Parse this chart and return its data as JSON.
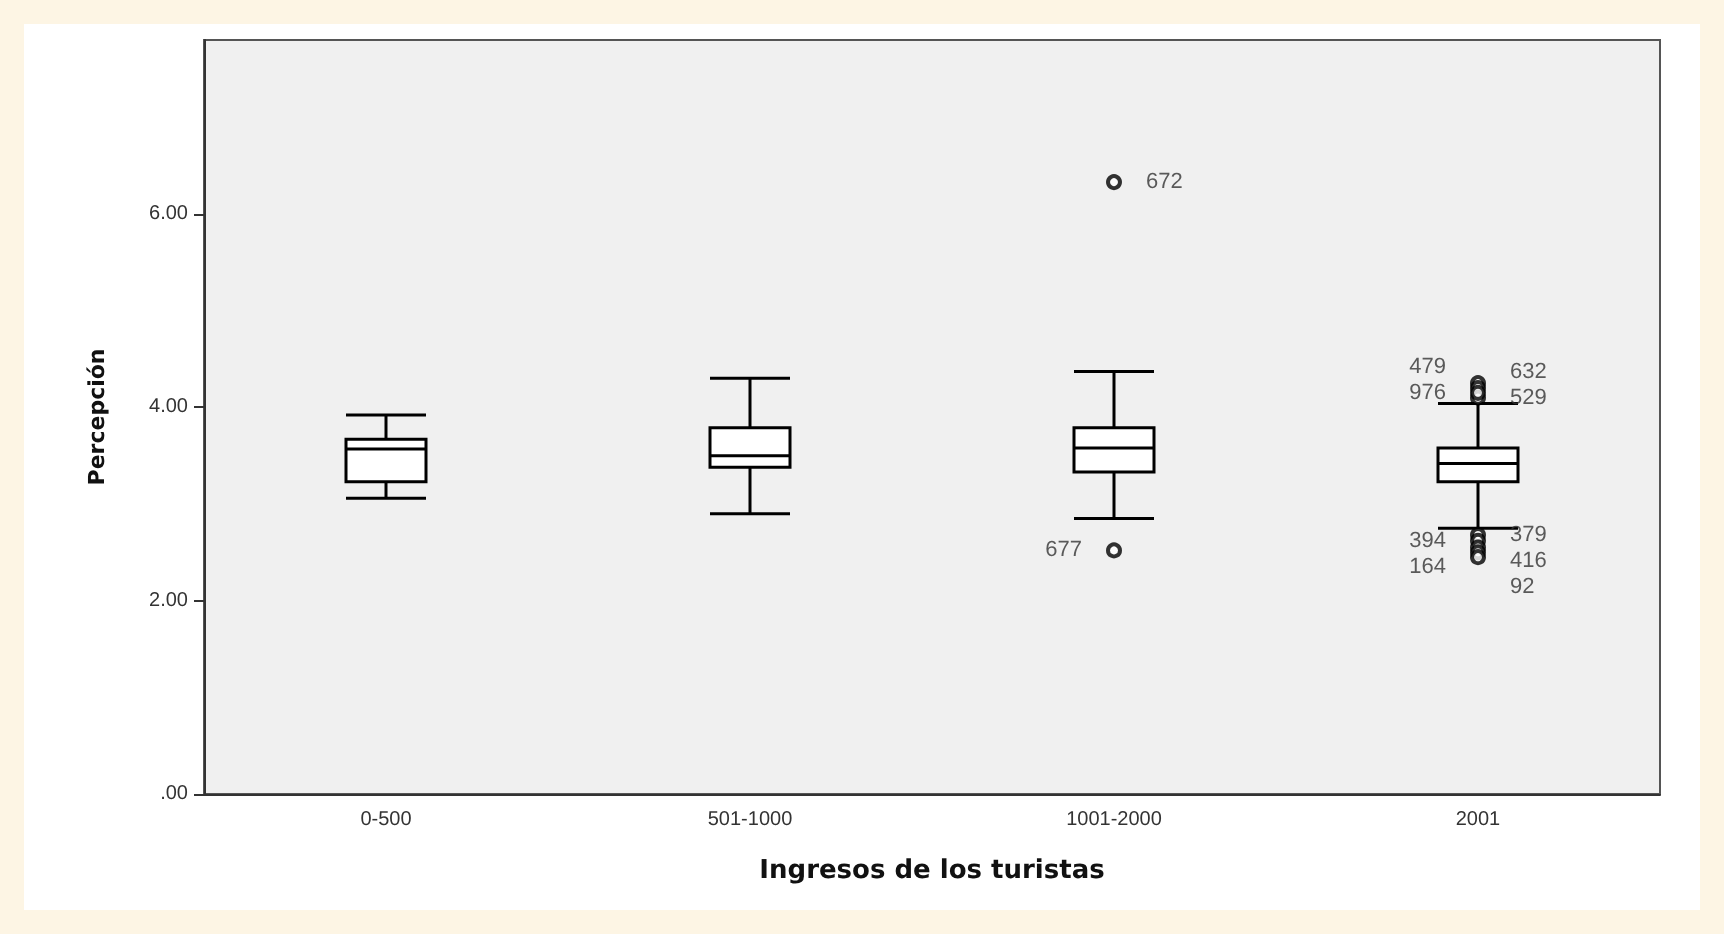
{
  "chart_data": {
    "type": "box",
    "xlabel": "Ingresos de los turistas",
    "ylabel": "Percepción",
    "categories": [
      "0-500",
      "501-1000",
      "1001-2000",
      "2001"
    ],
    "boxes": [
      {
        "low": 3.06,
        "q1": 3.23,
        "median": 3.57,
        "q3": 3.67,
        "high": 3.92
      },
      {
        "low": 2.9,
        "q1": 3.38,
        "median": 3.5,
        "q3": 3.79,
        "high": 4.3
      },
      {
        "low": 2.85,
        "q1": 3.33,
        "median": 3.58,
        "q3": 3.79,
        "high": 4.37,
        "outliers": [
          6.33,
          2.52
        ]
      },
      {
        "low": 2.75,
        "q1": 3.23,
        "median": 3.42,
        "q3": 3.58,
        "high": 4.04,
        "outliers": [
          4.25,
          4.2,
          4.1,
          4.15,
          2.68,
          2.62,
          2.55,
          2.5,
          2.45
        ]
      }
    ],
    "ylim": [
      0,
      7.8
    ],
    "yticks": [
      {
        "value": 0,
        "label": ".00"
      },
      {
        "value": 2,
        "label": "2.00"
      },
      {
        "value": 4,
        "label": "4.00"
      },
      {
        "value": 6,
        "label": "6.00"
      }
    ],
    "grid": false,
    "annotations": [
      "672",
      "677",
      "632",
      "479",
      "529",
      "976",
      "379",
      "394",
      "416",
      "164",
      "92"
    ]
  }
}
